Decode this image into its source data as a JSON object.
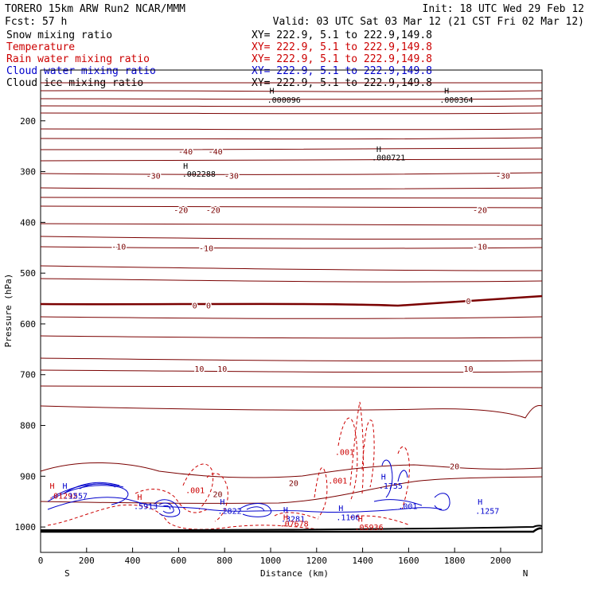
{
  "header": {
    "title": "TORERO  15km ARW   Run2    NCAR/MMM",
    "init": "Init: 18 UTC Wed 29 Feb 12",
    "fcst": "Fcst:   57 h",
    "valid": "Valid: 03 UTC Sat 03 Mar 12 (21 CST Fri 02 Mar 12)"
  },
  "colors": {
    "snow": "#000000",
    "temperature": "#cc0000",
    "rain": "#cc0000",
    "cloud_water": "#0000cc",
    "cloud_ice": "#000000",
    "isotherm": "#7a0000"
  },
  "chart_data": {
    "type": "cross-section",
    "xlabel": "Distance (km)",
    "ylabel": "Pressure (hPa)",
    "xlim": [
      0,
      2180
    ],
    "ylim": [
      1050,
      100
    ],
    "x_ticks": [
      0,
      200,
      400,
      600,
      800,
      1000,
      1200,
      1400,
      1600,
      1800,
      2000
    ],
    "y_ticks": [
      200,
      300,
      400,
      500,
      600,
      700,
      800,
      900,
      1000
    ],
    "x_end_labels": {
      "left": "S",
      "right": "N"
    },
    "legend": [
      {
        "name": "Snow mixing ratio",
        "xy": "XY= 222.9,  5.1 to 222.9,149.8",
        "color": "#000000"
      },
      {
        "name": "Temperature",
        "xy": "XY= 222.9,  5.1 to 222.9,149.8",
        "color": "#cc0000"
      },
      {
        "name": "Rain water mixing ratio",
        "xy": "XY= 222.9,  5.1 to 222.9,149.8",
        "color": "#cc0000"
      },
      {
        "name": "Cloud water mixing ratio",
        "xy": "XY= 222.9,  5.1 to 222.9,149.8",
        "color": "#0000cc"
      },
      {
        "name": "Cloud ice mixing ratio",
        "xy": "XY= 222.9,  5.1 to 222.9,149.8",
        "color": "#000000"
      }
    ],
    "isotherm_labels": [
      {
        "text": "-40",
        "x": 630,
        "p": 260
      },
      {
        "text": "-40",
        "x": 760,
        "p": 260
      },
      {
        "text": "-30",
        "x": 490,
        "p": 308
      },
      {
        "text": "-30",
        "x": 830,
        "p": 308
      },
      {
        "text": "-30",
        "x": 2010,
        "p": 308
      },
      {
        "text": "-20",
        "x": 610,
        "p": 375
      },
      {
        "text": "-20",
        "x": 750,
        "p": 375
      },
      {
        "text": "-20",
        "x": 1910,
        "p": 375
      },
      {
        "text": "-10",
        "x": 340,
        "p": 447
      },
      {
        "text": "-10",
        "x": 720,
        "p": 450
      },
      {
        "text": "-10",
        "x": 1910,
        "p": 447
      },
      {
        "text": "0",
        "x": 670,
        "p": 563
      },
      {
        "text": "0",
        "x": 730,
        "p": 563
      },
      {
        "text": "0",
        "x": 1860,
        "p": 555
      },
      {
        "text": "10",
        "x": 690,
        "p": 688
      },
      {
        "text": "10",
        "x": 790,
        "p": 688
      },
      {
        "text": "10",
        "x": 1860,
        "p": 688
      },
      {
        "text": "20",
        "x": 770,
        "p": 935
      },
      {
        "text": "20",
        "x": 1100,
        "p": 913
      },
      {
        "text": "20",
        "x": 1800,
        "p": 880
      }
    ],
    "annotations": [
      {
        "text": "H",
        "x": 995,
        "p": 140,
        "color": "#000000"
      },
      {
        "text": ".000096",
        "x": 985,
        "p": 158,
        "color": "#000000"
      },
      {
        "text": "H",
        "x": 1755,
        "p": 140,
        "color": "#000000"
      },
      {
        "text": ".000364",
        "x": 1735,
        "p": 158,
        "color": "#000000"
      },
      {
        "text": "H",
        "x": 1460,
        "p": 255,
        "color": "#000000"
      },
      {
        "text": ".000721",
        "x": 1440,
        "p": 272,
        "color": "#000000"
      },
      {
        "text": "H",
        "x": 620,
        "p": 288,
        "color": "#000000"
      },
      {
        "text": ".002288",
        "x": 615,
        "p": 304,
        "color": "#000000"
      },
      {
        "text": ".001",
        "x": 1280,
        "p": 852,
        "color": "#cc0000"
      },
      {
        "text": ".001",
        "x": 1250,
        "p": 908,
        "color": "#cc0000"
      },
      {
        "text": ".001",
        "x": 630,
        "p": 927,
        "color": "#cc0000"
      },
      {
        "text": "H",
        "x": 1480,
        "p": 900,
        "color": "#0000cc"
      },
      {
        "text": ".1755",
        "x": 1470,
        "p": 918,
        "color": "#0000cc"
      },
      {
        "text": ".001",
        "x": 1555,
        "p": 958,
        "color": "#0000cc"
      },
      {
        "text": "H",
        "x": 1900,
        "p": 950,
        "color": "#0000cc"
      },
      {
        "text": ".1257",
        "x": 1890,
        "p": 968,
        "color": "#0000cc"
      },
      {
        "text": "H",
        "x": 780,
        "p": 950,
        "color": "#0000cc"
      },
      {
        "text": ".2822",
        "x": 770,
        "p": 968,
        "color": "#0000cc"
      },
      {
        "text": "H",
        "x": 1295,
        "p": 962,
        "color": "#0000cc"
      },
      {
        "text": ".1106",
        "x": 1285,
        "p": 980,
        "color": "#0000cc"
      },
      {
        "text": "H",
        "x": 1055,
        "p": 965,
        "color": "#0000cc"
      },
      {
        "text": ".3281",
        "x": 1045,
        "p": 983,
        "color": "#0000cc"
      },
      {
        "text": "H",
        "x": 1055,
        "p": 980,
        "color": "#cc0000"
      },
      {
        "text": ".07678",
        "x": 1040,
        "p": 993,
        "color": "#cc0000"
      },
      {
        "text": "H",
        "x": 1380,
        "p": 983,
        "color": "#cc0000"
      },
      {
        "text": ".05936",
        "x": 1365,
        "p": 1000,
        "color": "#cc0000"
      },
      {
        "text": "H",
        "x": 40,
        "p": 918,
        "color": "#cc0000"
      },
      {
        "text": "H",
        "x": 95,
        "p": 918,
        "color": "#0000cc"
      },
      {
        "text": ".01292",
        "x": 35,
        "p": 938,
        "color": "#cc0000"
      },
      {
        "text": ".1557",
        "x": 100,
        "p": 938,
        "color": "#0000cc"
      },
      {
        "text": "H",
        "x": 420,
        "p": 940,
        "color": "#cc0000"
      },
      {
        "text": ".5913",
        "x": 405,
        "p": 958,
        "color": "#0000cc"
      }
    ]
  }
}
